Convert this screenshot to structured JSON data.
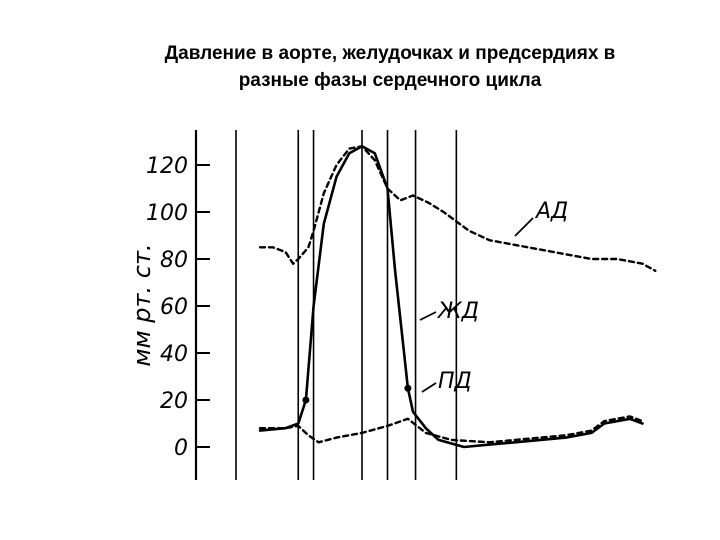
{
  "chart_data": {
    "type": "line",
    "title_line1": "Давление в аорте, желудочках и предсердиях в",
    "title_line2": "разные фазы сердечного цикла",
    "ylabel": "мм рт. ст.",
    "xlabel": "",
    "ylim": [
      0,
      130
    ],
    "yticks": [
      0,
      20,
      40,
      60,
      80,
      100,
      120
    ],
    "ytick_labels": [
      "0",
      "20",
      "40",
      "60",
      "80",
      "100",
      "120"
    ],
    "grid": false,
    "series": [
      {
        "name": "АД",
        "style": "dashed",
        "values": [
          [
            0,
            85
          ],
          [
            0.5,
            85
          ],
          [
            1.0,
            83
          ],
          [
            1.3,
            78
          ],
          [
            1.5,
            80
          ],
          [
            1.9,
            85
          ],
          [
            2.1,
            92
          ],
          [
            2.5,
            108
          ],
          [
            3.0,
            120
          ],
          [
            3.5,
            127
          ],
          [
            4.0,
            128
          ],
          [
            4.5,
            122
          ],
          [
            5.0,
            110
          ],
          [
            5.5,
            105
          ],
          [
            6.0,
            107
          ],
          [
            6.6,
            104
          ],
          [
            7.2,
            100
          ],
          [
            8.2,
            92
          ],
          [
            9.0,
            88
          ],
          [
            10.0,
            86
          ],
          [
            11.0,
            84
          ],
          [
            12.0,
            82
          ],
          [
            13.0,
            80
          ],
          [
            14.0,
            80
          ],
          [
            15.0,
            78
          ],
          [
            15.5,
            75
          ]
        ]
      },
      {
        "name": "ЖД",
        "style": "solid",
        "values": [
          [
            0,
            7
          ],
          [
            1.0,
            8
          ],
          [
            1.5,
            10
          ],
          [
            1.8,
            20
          ],
          [
            2.1,
            60
          ],
          [
            2.5,
            95
          ],
          [
            3.0,
            115
          ],
          [
            3.5,
            125
          ],
          [
            4.0,
            128
          ],
          [
            4.5,
            125
          ],
          [
            5.0,
            110
          ],
          [
            5.3,
            75
          ],
          [
            5.6,
            45
          ],
          [
            5.8,
            25
          ],
          [
            6.0,
            15
          ],
          [
            6.5,
            8
          ],
          [
            7.0,
            3
          ],
          [
            8.0,
            0
          ],
          [
            9.0,
            1
          ],
          [
            10.0,
            2
          ],
          [
            11.0,
            3
          ],
          [
            12.0,
            4
          ],
          [
            13.0,
            6
          ],
          [
            13.5,
            10
          ],
          [
            14.5,
            12
          ],
          [
            15.0,
            10
          ]
        ]
      },
      {
        "name": "ПД",
        "style": "dashed",
        "values": [
          [
            0,
            8
          ],
          [
            1.0,
            8
          ],
          [
            1.5,
            9
          ],
          [
            1.9,
            5
          ],
          [
            2.3,
            2
          ],
          [
            3.0,
            4
          ],
          [
            4.0,
            6
          ],
          [
            5.0,
            9
          ],
          [
            5.8,
            12
          ],
          [
            6.5,
            6
          ],
          [
            7.5,
            3
          ],
          [
            9.0,
            2
          ],
          [
            10.0,
            3
          ],
          [
            11.0,
            4
          ],
          [
            12.0,
            5
          ],
          [
            13.0,
            7
          ],
          [
            13.5,
            11
          ],
          [
            14.5,
            13
          ],
          [
            15.0,
            11
          ]
        ]
      }
    ],
    "phase_lines_x": [
      1.5,
      2.1,
      4.0,
      5.0,
      6.1,
      7.7
    ],
    "annotation_points": [
      {
        "series": "ЖД",
        "x": 1.8,
        "y": 20
      },
      {
        "series": "ЖД",
        "x": 5.8,
        "y": 25
      }
    ]
  }
}
